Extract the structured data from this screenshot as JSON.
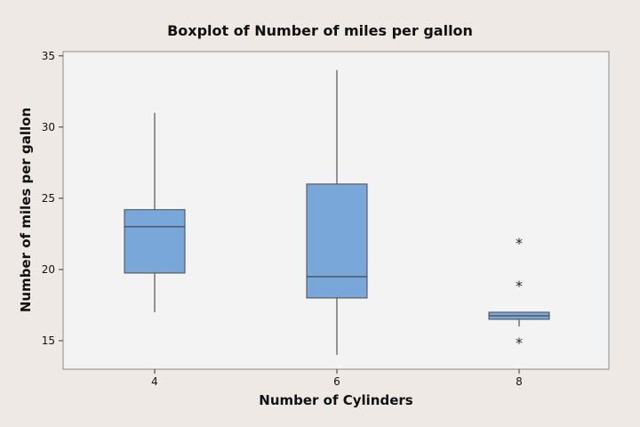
{
  "chart_data": {
    "type": "boxplot",
    "title": "Boxplot of Number of miles per gallon",
    "xlabel": "Number of Cylinders",
    "ylabel": "Number of miles per gallon",
    "ylim": [
      13,
      35.3
    ],
    "yticks": [
      15,
      20,
      25,
      30,
      35
    ],
    "categories": [
      "4",
      "6",
      "8"
    ],
    "boxes": [
      {
        "category": "4",
        "whisker_low": 17,
        "q1": 19.75,
        "median": 23,
        "q3": 24.2,
        "whisker_high": 31,
        "outliers": []
      },
      {
        "category": "6",
        "whisker_low": 14,
        "q1": 18,
        "median": 19.5,
        "q3": 26,
        "whisker_high": 34,
        "outliers": []
      },
      {
        "category": "8",
        "whisker_low": 16,
        "q1": 16.5,
        "median": 16.75,
        "q3": 17,
        "whisker_high": 17,
        "outliers": [
          22,
          19,
          15
        ]
      }
    ],
    "box_color": "#7aa7d9",
    "outlier_marker": "*",
    "grid": false,
    "legend": "none"
  }
}
